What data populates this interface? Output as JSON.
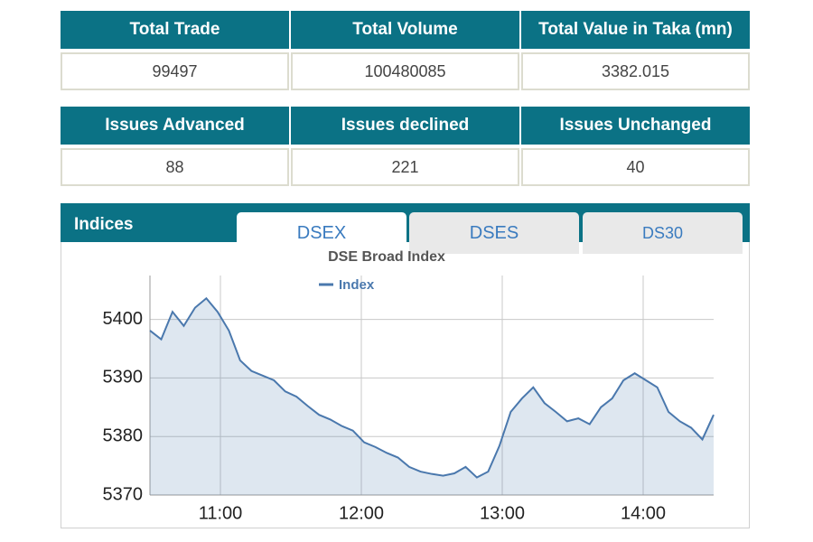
{
  "summary_table": {
    "headers": [
      "Total Trade",
      "Total Volume",
      "Total Value in Taka (mn)"
    ],
    "values": [
      99497,
      100480085,
      3382.015
    ]
  },
  "issues_table": {
    "headers": [
      "Issues Advanced",
      "Issues declined",
      "Issues Unchanged"
    ],
    "values": [
      88,
      221,
      40
    ]
  },
  "indices": {
    "title": "Indices",
    "tabs": [
      "DSEX",
      "DSES",
      "DS30"
    ]
  },
  "chart_data": {
    "type": "line",
    "title": "DSE Broad Index",
    "x": [
      10.5,
      10.58,
      10.66,
      10.74,
      10.82,
      10.9,
      10.98,
      11.06,
      11.14,
      11.22,
      11.3,
      11.38,
      11.46,
      11.54,
      11.62,
      11.7,
      11.78,
      11.86,
      11.94,
      12.02,
      12.1,
      12.18,
      12.26,
      12.34,
      12.42,
      12.5,
      12.58,
      12.66,
      12.74,
      12.82,
      12.9,
      12.98,
      13.06,
      13.14,
      13.22,
      13.3,
      13.38,
      13.46,
      13.54,
      13.62,
      13.7,
      13.78,
      13.86,
      13.94,
      14.02,
      14.1,
      14.18,
      14.26,
      14.34,
      14.42,
      14.5
    ],
    "series": [
      {
        "name": "Index",
        "color": "#4a78ad",
        "values": [
          5398.1,
          5396.6,
          5401.3,
          5398.9,
          5402.0,
          5403.6,
          5401.3,
          5398.1,
          5393.0,
          5391.2,
          5390.4,
          5389.6,
          5387.7,
          5386.8,
          5385.2,
          5383.7,
          5382.9,
          5381.8,
          5381.0,
          5379.0,
          5378.2,
          5377.2,
          5376.4,
          5374.8,
          5374.0,
          5373.6,
          5373.3,
          5373.7,
          5374.8,
          5373.0,
          5374.0,
          5378.4,
          5384.2,
          5386.5,
          5388.4,
          5385.7,
          5384.2,
          5382.6,
          5383.1,
          5382.1,
          5385.0,
          5386.5,
          5389.6,
          5390.8,
          5389.6,
          5388.4,
          5384.2,
          5382.6,
          5381.5,
          5379.5,
          5383.7
        ]
      }
    ],
    "xlim": [
      10.5,
      14.5
    ],
    "xticks": [
      {
        "value": 11,
        "label": "11:00"
      },
      {
        "value": 12,
        "label": "12:00"
      },
      {
        "value": 13,
        "label": "13:00"
      },
      {
        "value": 14,
        "label": "14:00"
      }
    ],
    "ylim": [
      5370,
      5407.5
    ],
    "yticks": [
      5370,
      5380,
      5390,
      5400
    ],
    "grid": true,
    "area": true
  }
}
